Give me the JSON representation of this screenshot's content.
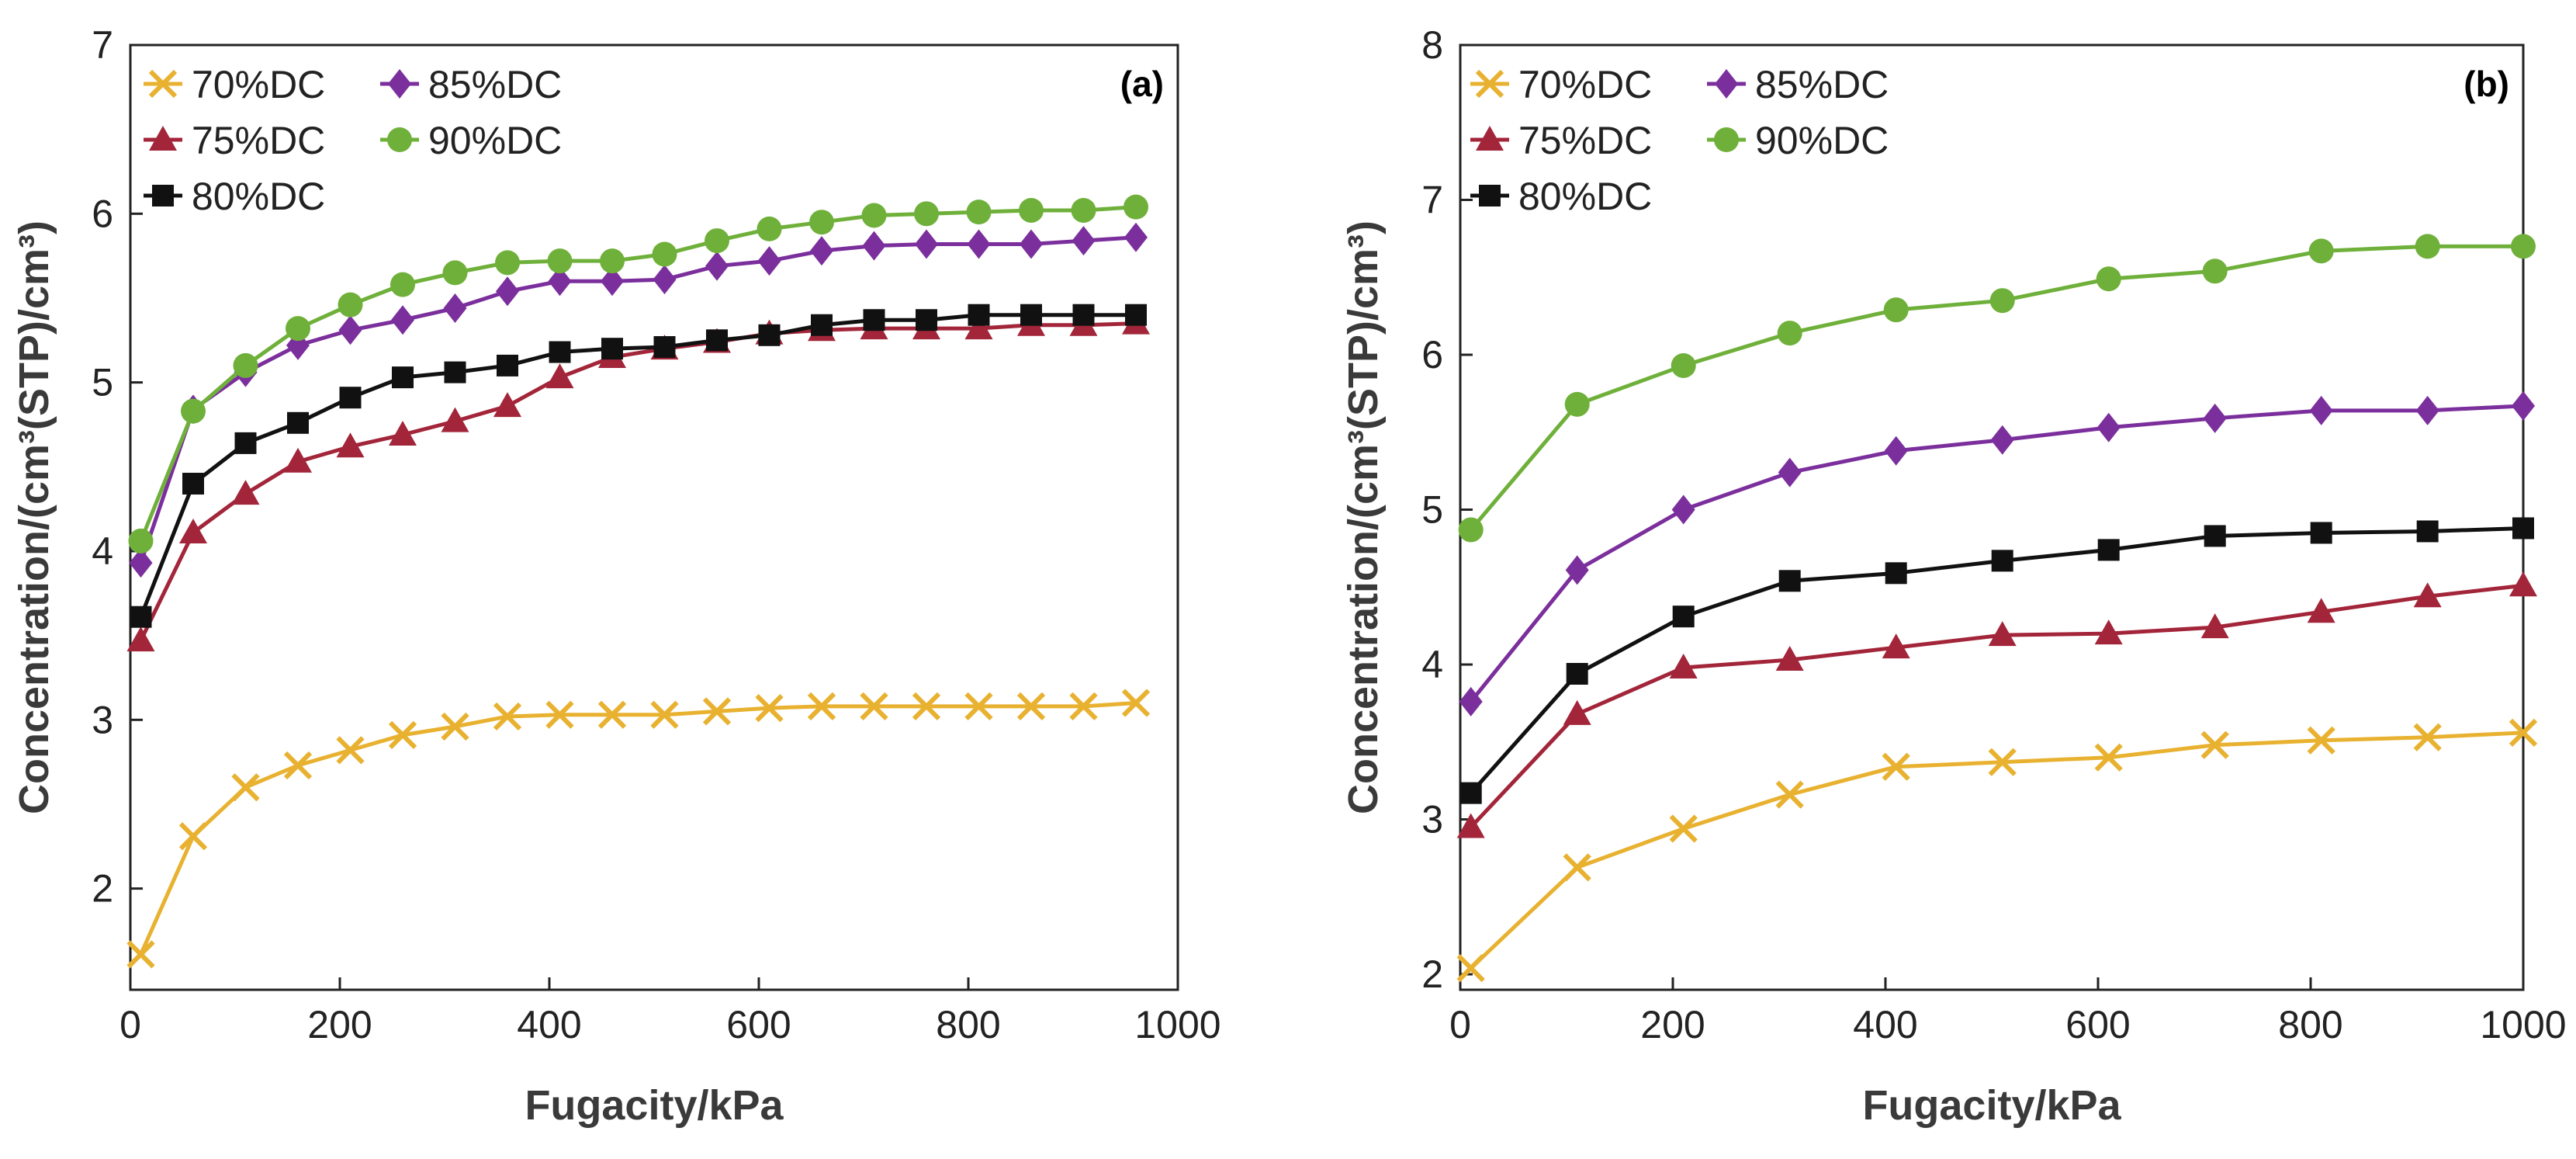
{
  "colors": {
    "70%DC": "#e8b130",
    "75%DC": "#a3253a",
    "80%DC": "#111111",
    "85%DC": "#7b2f9c",
    "90%DC": "#6fb03a"
  },
  "chart_data": [
    {
      "type": "line",
      "panel_label": "(a)",
      "xlabel": "Fugacity/kPa",
      "ylabel": "Concentration/(cm³(STP)/cm³)",
      "xlim": [
        0,
        1000
      ],
      "ylim": [
        1.4,
        7
      ],
      "xticks": [
        0,
        200,
        400,
        600,
        800,
        1000
      ],
      "yticks": [
        2,
        3,
        4,
        5,
        6,
        7
      ],
      "legend_order": [
        "70%DC",
        "85%DC",
        "75%DC",
        "90%DC",
        "80%DC"
      ],
      "x": [
        10,
        60,
        110,
        160,
        210,
        260,
        310,
        360,
        410,
        460,
        510,
        560,
        610,
        660,
        710,
        760,
        810,
        860,
        910,
        960
      ],
      "series": [
        {
          "name": "70%DC",
          "marker": "x",
          "values": [
            1.61,
            2.31,
            2.6,
            2.73,
            2.82,
            2.91,
            2.96,
            3.02,
            3.03,
            3.03,
            3.03,
            3.05,
            3.07,
            3.08,
            3.08,
            3.08,
            3.08,
            3.08,
            3.08,
            3.1
          ]
        },
        {
          "name": "75%DC",
          "marker": "triangle",
          "values": [
            3.47,
            4.11,
            4.34,
            4.53,
            4.62,
            4.69,
            4.77,
            4.86,
            5.03,
            5.15,
            5.2,
            5.24,
            5.29,
            5.31,
            5.32,
            5.32,
            5.32,
            5.34,
            5.34,
            5.35
          ]
        },
        {
          "name": "80%DC",
          "marker": "square",
          "values": [
            3.61,
            4.4,
            4.64,
            4.76,
            4.91,
            5.03,
            5.06,
            5.1,
            5.18,
            5.2,
            5.21,
            5.25,
            5.28,
            5.34,
            5.37,
            5.37,
            5.4,
            5.4,
            5.4,
            5.4
          ]
        },
        {
          "name": "85%DC",
          "marker": "diamond",
          "values": [
            3.93,
            4.84,
            5.06,
            5.22,
            5.31,
            5.37,
            5.44,
            5.54,
            5.6,
            5.6,
            5.61,
            5.69,
            5.72,
            5.78,
            5.81,
            5.82,
            5.82,
            5.82,
            5.84,
            5.86
          ]
        },
        {
          "name": "90%DC",
          "marker": "circle",
          "values": [
            4.06,
            4.83,
            5.1,
            5.32,
            5.46,
            5.58,
            5.65,
            5.71,
            5.72,
            5.72,
            5.76,
            5.84,
            5.91,
            5.95,
            5.99,
            6.0,
            6.01,
            6.02,
            6.02,
            6.04
          ]
        }
      ]
    },
    {
      "type": "line",
      "panel_label": "(b)",
      "xlabel": "Fugacity/kPa",
      "ylabel": "Concentration/(cm³(STP)/cm³)",
      "xlim": [
        0,
        1000
      ],
      "ylim": [
        1.9,
        8
      ],
      "xticks": [
        0,
        200,
        400,
        600,
        800,
        1000
      ],
      "yticks": [
        2,
        3,
        4,
        5,
        6,
        7,
        8
      ],
      "legend_order": [
        "70%DC",
        "85%DC",
        "75%DC",
        "90%DC",
        "80%DC"
      ],
      "x": [
        10,
        110,
        210,
        310,
        410,
        510,
        610,
        710,
        810,
        910,
        1000
      ],
      "series": [
        {
          "name": "70%DC",
          "marker": "x",
          "values": [
            2.04,
            2.69,
            2.94,
            3.16,
            3.34,
            3.37,
            3.4,
            3.48,
            3.51,
            3.53,
            3.56
          ]
        },
        {
          "name": "75%DC",
          "marker": "triangle",
          "values": [
            2.95,
            3.68,
            3.98,
            4.03,
            4.11,
            4.19,
            4.2,
            4.24,
            4.34,
            4.44,
            4.51
          ]
        },
        {
          "name": "80%DC",
          "marker": "square",
          "values": [
            3.17,
            3.94,
            4.31,
            4.54,
            4.59,
            4.67,
            4.74,
            4.83,
            4.85,
            4.86,
            4.88
          ]
        },
        {
          "name": "85%DC",
          "marker": "diamond",
          "values": [
            3.76,
            4.61,
            5.0,
            5.24,
            5.38,
            5.45,
            5.53,
            5.59,
            5.64,
            5.64,
            5.67
          ]
        },
        {
          "name": "90%DC",
          "marker": "circle",
          "values": [
            4.87,
            5.68,
            5.93,
            6.14,
            6.29,
            6.35,
            6.49,
            6.54,
            6.67,
            6.7,
            6.7
          ]
        }
      ]
    }
  ]
}
